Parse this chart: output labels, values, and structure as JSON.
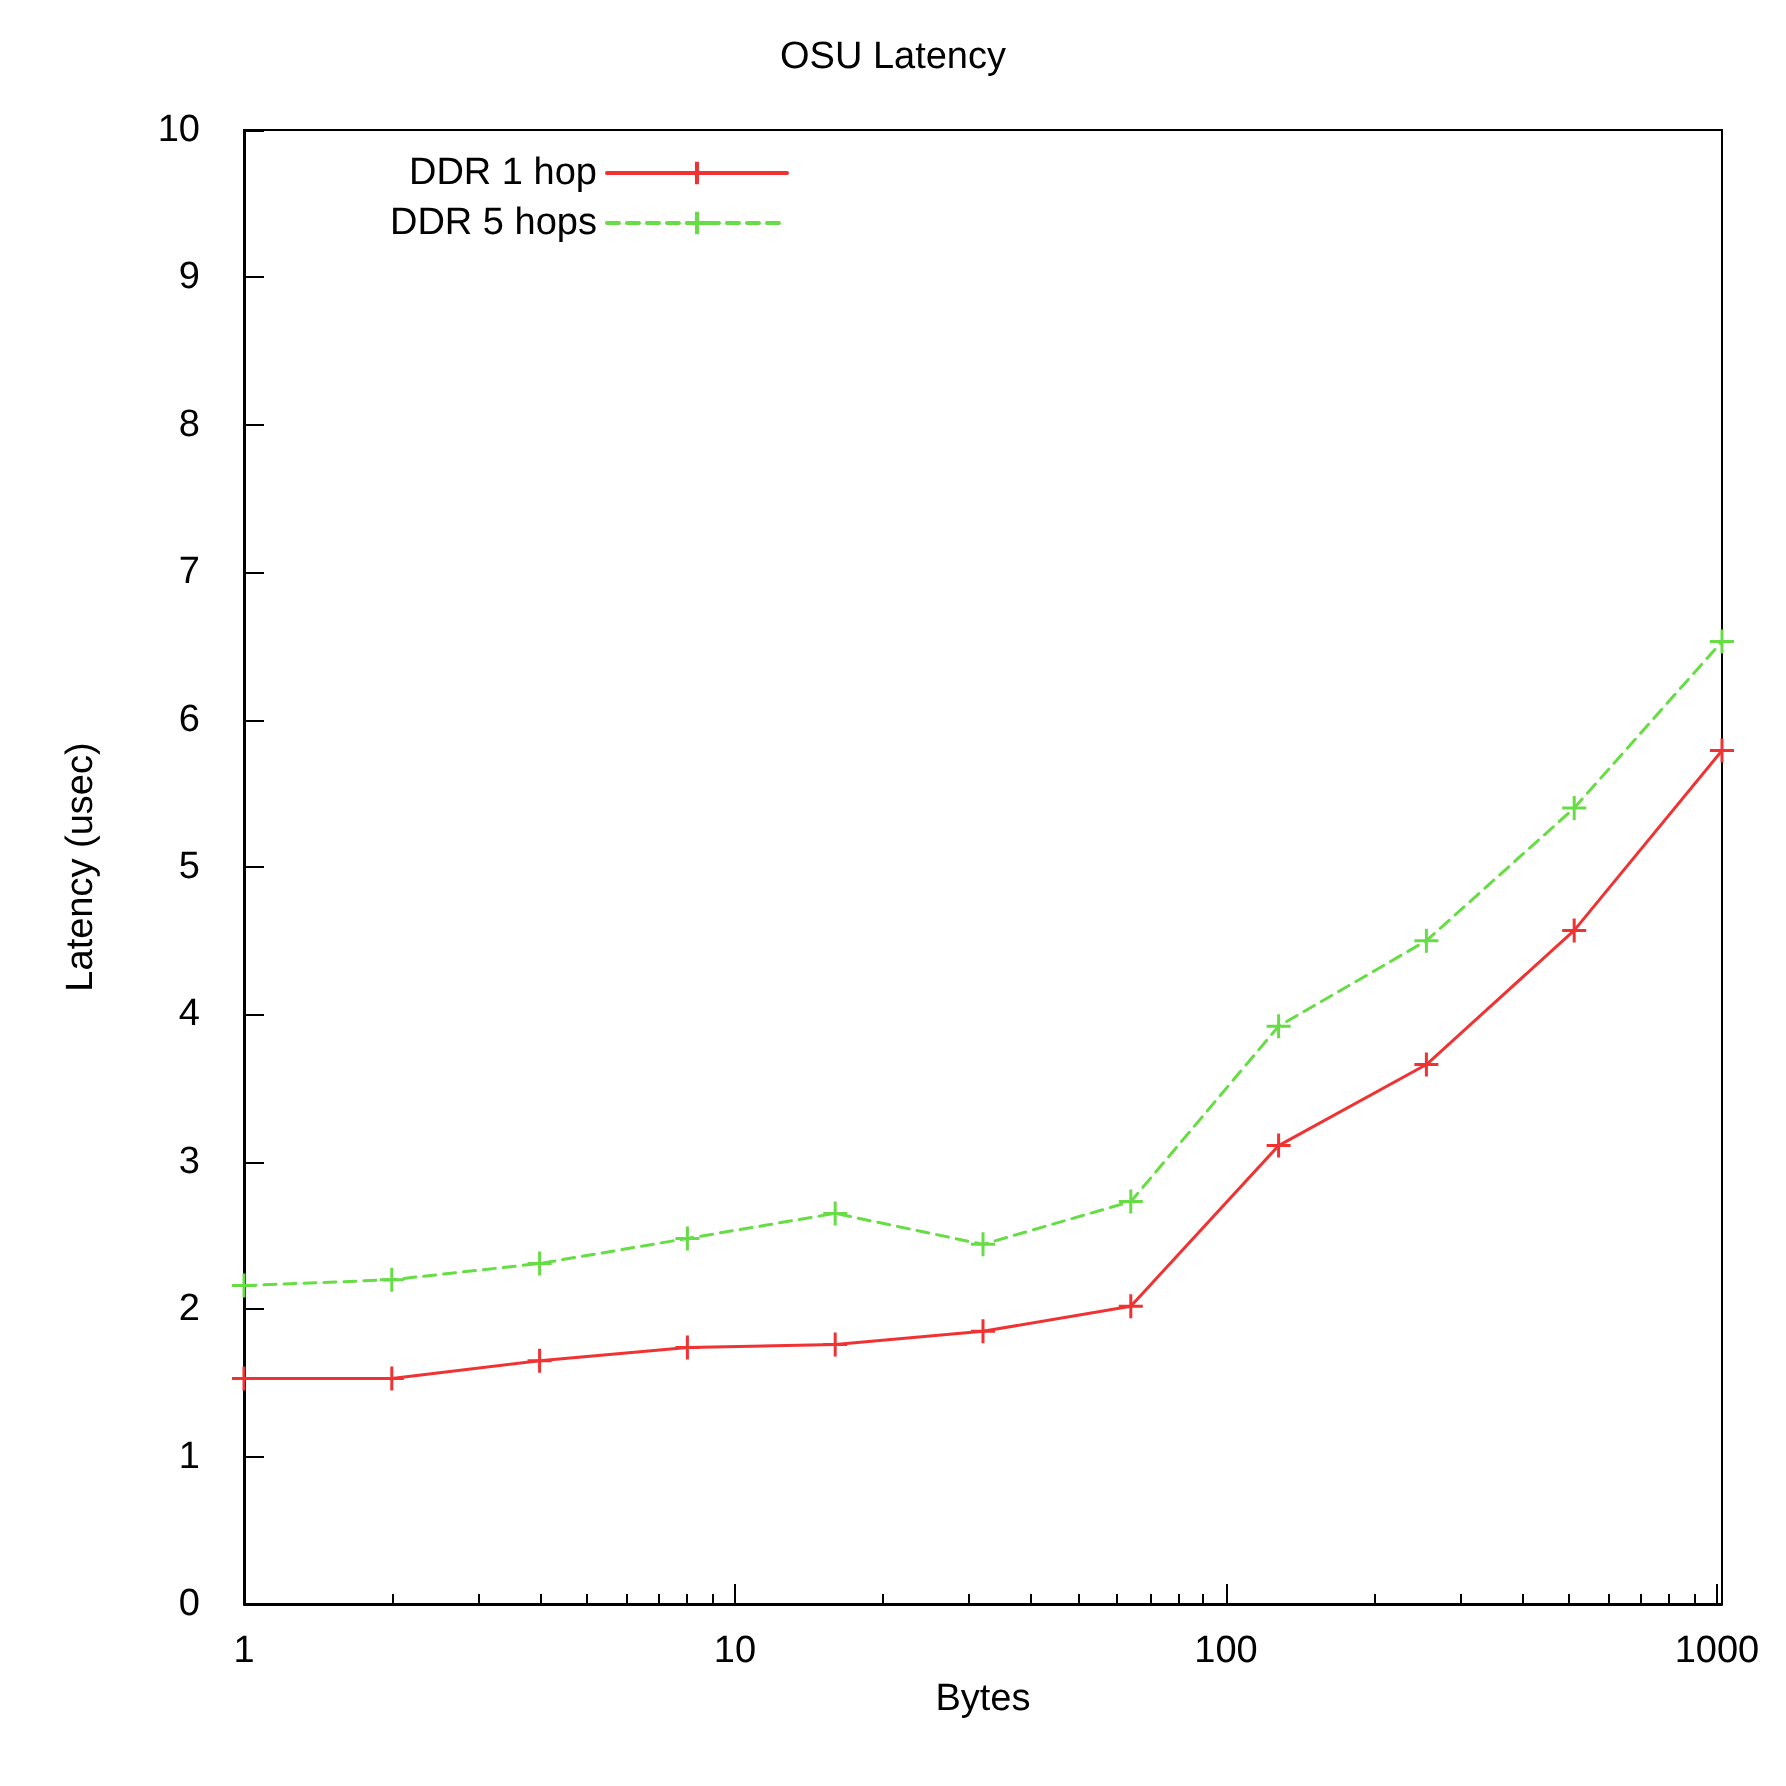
{
  "chart_data": {
    "type": "line",
    "title": "OSU Latency",
    "xlabel": "Bytes",
    "ylabel": "Latency (usec)",
    "x": [
      1,
      2,
      4,
      8,
      16,
      32,
      64,
      128,
      256,
      512,
      1024
    ],
    "series": [
      {
        "name": "DDR 1 hop",
        "color": "#f03232",
        "line_style": "solid",
        "marker": "cross",
        "values": [
          1.53,
          1.53,
          1.65,
          1.74,
          1.76,
          1.85,
          2.02,
          3.11,
          3.66,
          4.57,
          5.79
        ]
      },
      {
        "name": "DDR 5 hops",
        "color": "#66dd44",
        "line_style": "dashed",
        "marker": "cross",
        "values": [
          2.16,
          2.2,
          2.31,
          2.48,
          2.65,
          2.44,
          2.73,
          3.92,
          4.5,
          5.4,
          6.53
        ]
      }
    ],
    "log": "x",
    "xlim": [
      1,
      1024
    ],
    "xticks": [
      1,
      10,
      100,
      1000
    ],
    "ylim": [
      0,
      10
    ],
    "yticks": [
      0,
      1,
      2,
      3,
      4,
      5,
      6,
      7,
      8,
      9,
      10
    ],
    "grid": false,
    "legend": "top"
  }
}
